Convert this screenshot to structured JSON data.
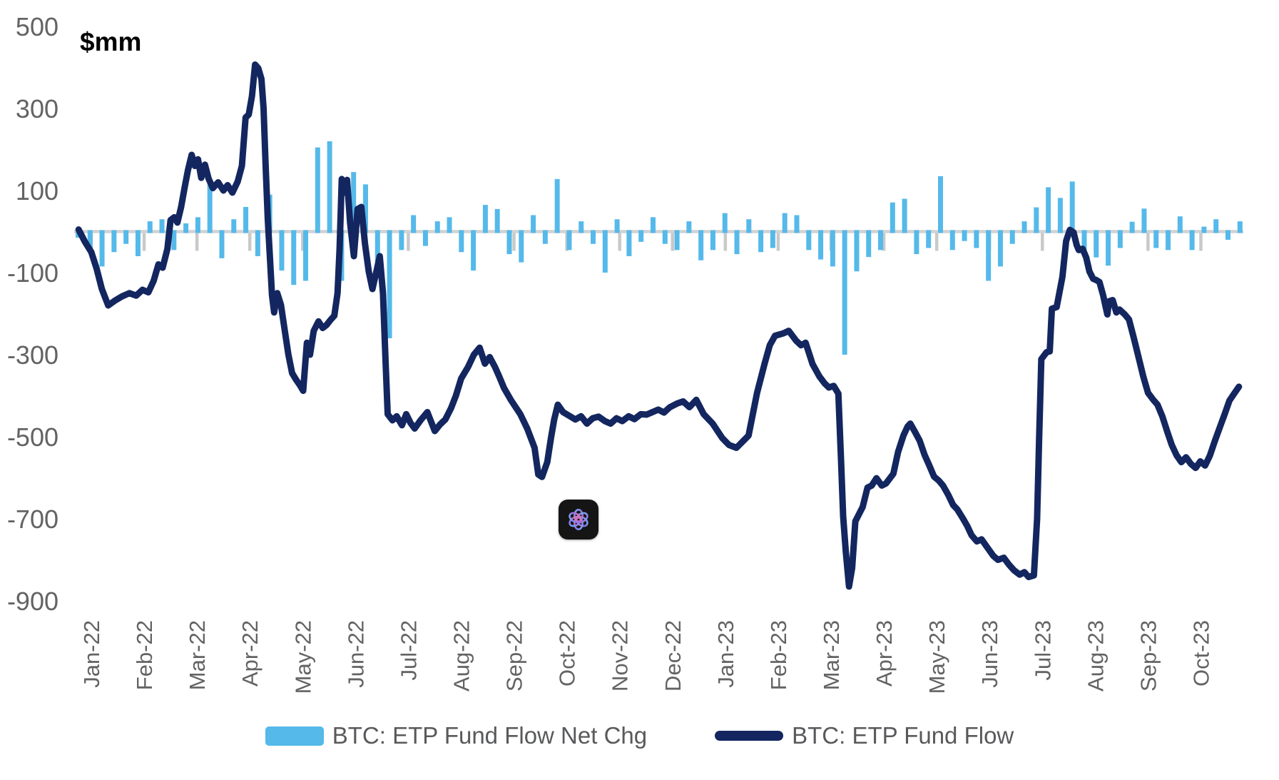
{
  "title_unit": "$mm",
  "colors": {
    "bar": "#55B9EA",
    "line": "#13265F",
    "zero_line": "#D2D2D2",
    "month_tick": "#C9C9C9",
    "axis_text": "#636363",
    "legend_text": "#58595B",
    "title_text": "#000000"
  },
  "legend": {
    "bar_label": "BTC: ETP Fund Flow Net Chg",
    "line_label": "BTC: ETP Fund Flow"
  },
  "watermark": {
    "icon": "chatgpt-logo"
  },
  "chart_data": {
    "type": "combo-bar-line",
    "title": "$mm",
    "ylabel": "$mm",
    "xlabel": "",
    "grid": false,
    "legend_position": "bottom-center",
    "y_axis": {
      "min": -900,
      "max": 500,
      "tick_step": 200,
      "ticks": [
        500,
        300,
        100,
        -100,
        -300,
        -500,
        -700,
        -900
      ]
    },
    "x_axis": {
      "labels": [
        "Jan-22",
        "Feb-22",
        "Mar-22",
        "Apr-22",
        "May-22",
        "Jun-22",
        "Jul-22",
        "Aug-22",
        "Sep-22",
        "Oct-22",
        "Nov-22",
        "Dec-22",
        "Jan-23",
        "Feb-23",
        "Mar-23",
        "Apr-23",
        "May-23",
        "Jun-23",
        "Jul-23",
        "Aug-23",
        "Sep-23",
        "Oct-23"
      ]
    },
    "series": [
      {
        "name": "BTC: ETP Fund Flow Net Chg",
        "type": "bar",
        "color": "#55B9EA",
        "x_start_month": -0.25,
        "x_step_months": 0.2267,
        "values": [
          -15,
          -40,
          -85,
          -50,
          -30,
          -60,
          25,
          30,
          -45,
          20,
          35,
          115,
          -65,
          30,
          60,
          -60,
          90,
          -95,
          -130,
          -120,
          205,
          220,
          -120,
          145,
          115,
          -85,
          -260,
          -45,
          40,
          -35,
          25,
          35,
          -50,
          -95,
          65,
          55,
          -55,
          -75,
          40,
          -30,
          128,
          -45,
          25,
          -30,
          -100,
          30,
          -60,
          -25,
          35,
          -30,
          -45,
          25,
          -70,
          -45,
          45,
          -55,
          30,
          -50,
          -40,
          45,
          40,
          -45,
          -68,
          -85,
          -300,
          -97,
          -62,
          -45,
          71,
          80,
          -55,
          -40,
          135,
          -45,
          -23,
          -40,
          -120,
          -85,
          -30,
          25,
          59,
          108,
          82,
          122,
          -45,
          -63,
          -83,
          -40,
          24,
          56,
          -40,
          -45,
          37,
          -45,
          12,
          30,
          -20,
          25
        ]
      },
      {
        "name": "BTC: ETP Fund Flow",
        "type": "line",
        "color": "#13265F",
        "points": [
          [
            -0.24,
            5
          ],
          [
            -0.12,
            -25
          ],
          [
            0.0,
            -50
          ],
          [
            0.1,
            -90
          ],
          [
            0.2,
            -140
          ],
          [
            0.32,
            -180
          ],
          [
            0.45,
            -168
          ],
          [
            0.58,
            -158
          ],
          [
            0.72,
            -150
          ],
          [
            0.85,
            -156
          ],
          [
            0.97,
            -142
          ],
          [
            1.08,
            -148
          ],
          [
            1.18,
            -120
          ],
          [
            1.27,
            -80
          ],
          [
            1.35,
            -88
          ],
          [
            1.44,
            -42
          ],
          [
            1.5,
            28
          ],
          [
            1.57,
            35
          ],
          [
            1.63,
            22
          ],
          [
            1.7,
            60
          ],
          [
            1.77,
            110
          ],
          [
            1.83,
            150
          ],
          [
            1.9,
            187
          ],
          [
            1.96,
            160
          ],
          [
            2.02,
            176
          ],
          [
            2.08,
            131
          ],
          [
            2.15,
            163
          ],
          [
            2.22,
            129
          ],
          [
            2.3,
            106
          ],
          [
            2.4,
            120
          ],
          [
            2.5,
            100
          ],
          [
            2.58,
            113
          ],
          [
            2.67,
            95
          ],
          [
            2.77,
            122
          ],
          [
            2.85,
            160
          ],
          [
            2.92,
            278
          ],
          [
            2.98,
            285
          ],
          [
            3.04,
            330
          ],
          [
            3.1,
            407
          ],
          [
            3.16,
            398
          ],
          [
            3.22,
            372
          ],
          [
            3.26,
            300
          ],
          [
            3.3,
            160
          ],
          [
            3.34,
            30
          ],
          [
            3.38,
            -63
          ],
          [
            3.42,
            -155
          ],
          [
            3.46,
            -197
          ],
          [
            3.52,
            -150
          ],
          [
            3.59,
            -179
          ],
          [
            3.66,
            -240
          ],
          [
            3.73,
            -300
          ],
          [
            3.8,
            -345
          ],
          [
            3.88,
            -362
          ],
          [
            3.95,
            -375
          ],
          [
            4.01,
            -388
          ],
          [
            4.08,
            -271
          ],
          [
            4.14,
            -300
          ],
          [
            4.21,
            -242
          ],
          [
            4.3,
            -219
          ],
          [
            4.38,
            -235
          ],
          [
            4.45,
            -228
          ],
          [
            4.53,
            -215
          ],
          [
            4.6,
            -205
          ],
          [
            4.66,
            -150
          ],
          [
            4.7,
            -40
          ],
          [
            4.74,
            128
          ],
          [
            4.79,
            95
          ],
          [
            4.84,
            126
          ],
          [
            4.9,
            20
          ],
          [
            4.97,
            -60
          ],
          [
            5.04,
            55
          ],
          [
            5.11,
            60
          ],
          [
            5.18,
            -30
          ],
          [
            5.25,
            -97
          ],
          [
            5.32,
            -140
          ],
          [
            5.4,
            -95
          ],
          [
            5.46,
            -60
          ],
          [
            5.52,
            -150
          ],
          [
            5.57,
            -320
          ],
          [
            5.61,
            -445
          ],
          [
            5.7,
            -460
          ],
          [
            5.78,
            -450
          ],
          [
            5.88,
            -472
          ],
          [
            5.96,
            -445
          ],
          [
            6.04,
            -466
          ],
          [
            6.12,
            -480
          ],
          [
            6.23,
            -460
          ],
          [
            6.36,
            -440
          ],
          [
            6.5,
            -486
          ],
          [
            6.6,
            -470
          ],
          [
            6.7,
            -458
          ],
          [
            6.81,
            -430
          ],
          [
            6.9,
            -400
          ],
          [
            7.0,
            -358
          ],
          [
            7.13,
            -330
          ],
          [
            7.24,
            -300
          ],
          [
            7.35,
            -283
          ],
          [
            7.45,
            -322
          ],
          [
            7.54,
            -306
          ],
          [
            7.64,
            -330
          ],
          [
            7.72,
            -353
          ],
          [
            7.81,
            -381
          ],
          [
            7.94,
            -410
          ],
          [
            8.12,
            -445
          ],
          [
            8.25,
            -480
          ],
          [
            8.39,
            -527
          ],
          [
            8.46,
            -592
          ],
          [
            8.53,
            -598
          ],
          [
            8.63,
            -562
          ],
          [
            8.7,
            -503
          ],
          [
            8.76,
            -458
          ],
          [
            8.83,
            -422
          ],
          [
            8.93,
            -440
          ],
          [
            9.06,
            -450
          ],
          [
            9.16,
            -458
          ],
          [
            9.27,
            -450
          ],
          [
            9.38,
            -468
          ],
          [
            9.49,
            -455
          ],
          [
            9.6,
            -451
          ],
          [
            9.72,
            -462
          ],
          [
            9.83,
            -468
          ],
          [
            9.94,
            -455
          ],
          [
            10.05,
            -462
          ],
          [
            10.17,
            -450
          ],
          [
            10.28,
            -457
          ],
          [
            10.4,
            -445
          ],
          [
            10.51,
            -446
          ],
          [
            10.62,
            -440
          ],
          [
            10.73,
            -434
          ],
          [
            10.84,
            -441
          ],
          [
            10.95,
            -428
          ],
          [
            11.09,
            -419
          ],
          [
            11.2,
            -414
          ],
          [
            11.32,
            -428
          ],
          [
            11.45,
            -410
          ],
          [
            11.59,
            -445
          ],
          [
            11.76,
            -468
          ],
          [
            11.94,
            -503
          ],
          [
            12.07,
            -520
          ],
          [
            12.21,
            -527
          ],
          [
            12.34,
            -510
          ],
          [
            12.44,
            -497
          ],
          [
            12.6,
            -393
          ],
          [
            12.74,
            -323
          ],
          [
            12.84,
            -277
          ],
          [
            12.94,
            -254
          ],
          [
            13.1,
            -248
          ],
          [
            13.2,
            -242
          ],
          [
            13.34,
            -266
          ],
          [
            13.43,
            -277
          ],
          [
            13.52,
            -271
          ],
          [
            13.65,
            -323
          ],
          [
            13.78,
            -353
          ],
          [
            13.88,
            -370
          ],
          [
            13.96,
            -380
          ],
          [
            14.05,
            -376
          ],
          [
            14.14,
            -395
          ],
          [
            14.19,
            -560
          ],
          [
            14.23,
            -694
          ],
          [
            14.28,
            -780
          ],
          [
            14.34,
            -865
          ],
          [
            14.4,
            -820
          ],
          [
            14.46,
            -706
          ],
          [
            14.6,
            -671
          ],
          [
            14.69,
            -624
          ],
          [
            14.77,
            -619
          ],
          [
            14.86,
            -601
          ],
          [
            14.96,
            -619
          ],
          [
            15.04,
            -614
          ],
          [
            15.18,
            -590
          ],
          [
            15.27,
            -537
          ],
          [
            15.37,
            -497
          ],
          [
            15.45,
            -475
          ],
          [
            15.5,
            -468
          ],
          [
            15.58,
            -486
          ],
          [
            15.68,
            -510
          ],
          [
            15.77,
            -544
          ],
          [
            15.85,
            -567
          ],
          [
            15.95,
            -597
          ],
          [
            16.04,
            -607
          ],
          [
            16.12,
            -619
          ],
          [
            16.22,
            -642
          ],
          [
            16.31,
            -666
          ],
          [
            16.39,
            -677
          ],
          [
            16.5,
            -700
          ],
          [
            16.58,
            -718
          ],
          [
            16.66,
            -740
          ],
          [
            16.76,
            -755
          ],
          [
            16.85,
            -750
          ],
          [
            16.96,
            -770
          ],
          [
            17.07,
            -790
          ],
          [
            17.16,
            -800
          ],
          [
            17.27,
            -795
          ],
          [
            17.37,
            -812
          ],
          [
            17.46,
            -825
          ],
          [
            17.57,
            -836
          ],
          [
            17.66,
            -830
          ],
          [
            17.74,
            -842
          ],
          [
            17.84,
            -838
          ],
          [
            17.9,
            -700
          ],
          [
            17.94,
            -500
          ],
          [
            17.98,
            -311
          ],
          [
            18.08,
            -294
          ],
          [
            18.14,
            -292
          ],
          [
            18.18,
            -188
          ],
          [
            18.27,
            -184
          ],
          [
            18.38,
            -110
          ],
          [
            18.45,
            -23
          ],
          [
            18.52,
            4
          ],
          [
            18.59,
            -2
          ],
          [
            18.65,
            -33
          ],
          [
            18.69,
            -45
          ],
          [
            18.76,
            -42
          ],
          [
            18.83,
            -63
          ],
          [
            18.89,
            -97
          ],
          [
            18.96,
            -115
          ],
          [
            19.02,
            -118
          ],
          [
            19.08,
            -123
          ],
          [
            19.15,
            -155
          ],
          [
            19.19,
            -179
          ],
          [
            19.23,
            -202
          ],
          [
            19.26,
            -170
          ],
          [
            19.33,
            -167
          ],
          [
            19.4,
            -197
          ],
          [
            19.46,
            -190
          ],
          [
            19.56,
            -202
          ],
          [
            19.64,
            -214
          ],
          [
            19.73,
            -259
          ],
          [
            19.83,
            -311
          ],
          [
            19.91,
            -353
          ],
          [
            20.0,
            -393
          ],
          [
            20.1,
            -410
          ],
          [
            20.18,
            -422
          ],
          [
            20.27,
            -450
          ],
          [
            20.37,
            -490
          ],
          [
            20.45,
            -520
          ],
          [
            20.54,
            -545
          ],
          [
            20.63,
            -562
          ],
          [
            20.72,
            -550
          ],
          [
            20.81,
            -566
          ],
          [
            20.9,
            -576
          ],
          [
            20.99,
            -560
          ],
          [
            21.08,
            -570
          ],
          [
            21.17,
            -546
          ],
          [
            21.26,
            -512
          ],
          [
            21.35,
            -480
          ],
          [
            21.45,
            -445
          ],
          [
            21.54,
            -412
          ],
          [
            21.63,
            -395
          ],
          [
            21.72,
            -378
          ]
        ]
      }
    ]
  }
}
